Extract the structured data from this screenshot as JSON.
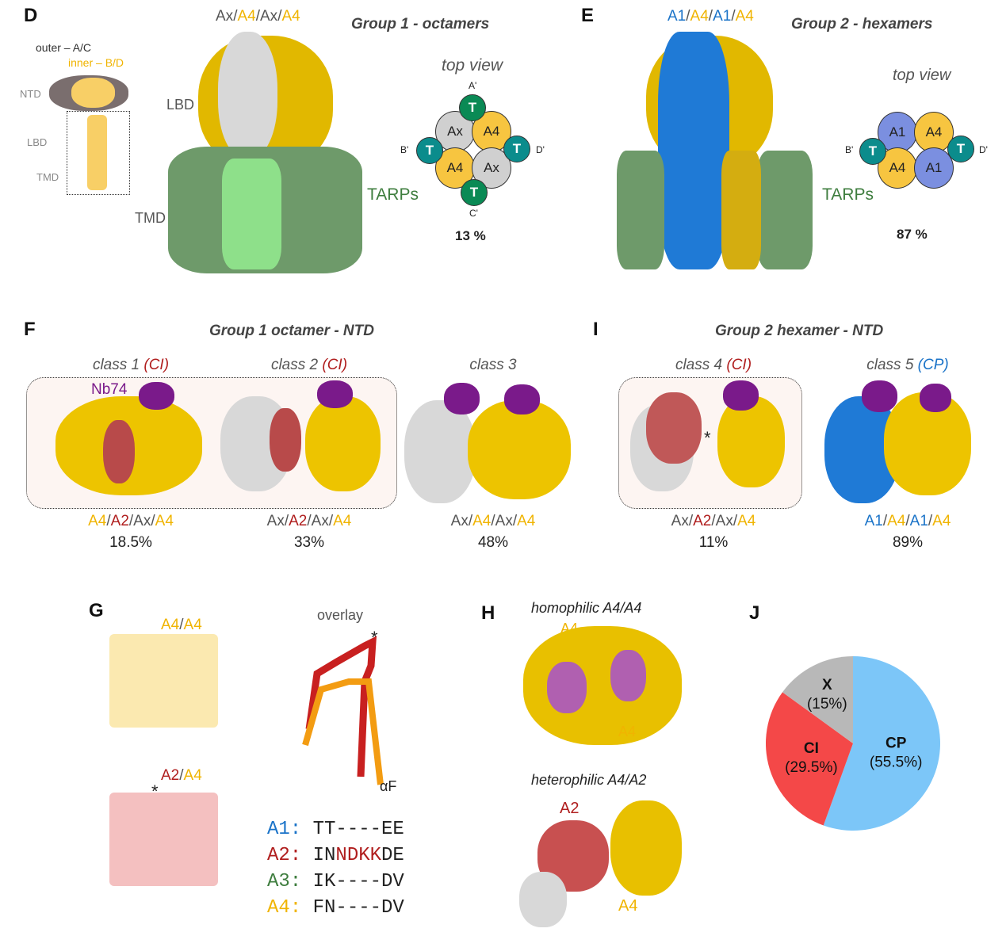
{
  "colors": {
    "A4": "#f0b400",
    "A2": "#b01e1e",
    "Ax": "#555555",
    "A1": "#1a73c8",
    "TARP": "#3e7d3e",
    "gray": "#c8c8c8",
    "teal": "#0b8c8c",
    "green": "#0a8a55",
    "purple": "#7a1a8a",
    "A1circle": "#7b8fe0"
  },
  "panelD": {
    "letter": "D",
    "title": "Group 1 - octamers",
    "composition": [
      {
        "t": "Ax",
        "c": "Ax"
      },
      {
        "t": "/",
        "c": "Ax"
      },
      {
        "t": "A4",
        "c": "A4"
      },
      {
        "t": "/",
        "c": "Ax"
      },
      {
        "t": "Ax",
        "c": "Ax"
      },
      {
        "t": "/",
        "c": "Ax"
      },
      {
        "t": "A4",
        "c": "A4"
      }
    ],
    "schematic": {
      "outer": "outer – A/C",
      "inner": "inner – B/D",
      "ntd": "NTD",
      "lbd": "LBD",
      "tmd": "TMD"
    },
    "lbd": "LBD",
    "tmd": "TMD",
    "tarps": "TARPs",
    "top_view": "top view",
    "top": {
      "a": "A'",
      "b": "B'",
      "c": "C'",
      "d": "D'",
      "t": "T",
      "s1": "Ax",
      "s2": "A4",
      "s3": "A4",
      "s4": "Ax"
    },
    "percent": "13 %"
  },
  "panelE": {
    "letter": "E",
    "title": "Group 2 - hexamers",
    "composition": [
      {
        "t": "A1",
        "c": "A1"
      },
      {
        "t": "/",
        "c": "Ax"
      },
      {
        "t": "A4",
        "c": "A4"
      },
      {
        "t": "/",
        "c": "Ax"
      },
      {
        "t": "A1",
        "c": "A1"
      },
      {
        "t": "/",
        "c": "Ax"
      },
      {
        "t": "A4",
        "c": "A4"
      }
    ],
    "tarps": "TARPs",
    "top_view": "top view",
    "top": {
      "b": "B'",
      "d": "D'",
      "t": "T",
      "s1": "A1",
      "s2": "A4",
      "s3": "A4",
      "s4": "A1"
    },
    "percent": "87 %"
  },
  "panelF": {
    "letter": "F",
    "title": "Group 1 octamer - NTD",
    "nb": "Nb74",
    "classes": [
      {
        "name": "class 1",
        "tag": "(CI)",
        "tagc": "A2",
        "comp": [
          {
            "t": "A4",
            "c": "A4"
          },
          {
            "t": "/",
            "c": "Ax"
          },
          {
            "t": "A2",
            "c": "A2"
          },
          {
            "t": "/",
            "c": "Ax"
          },
          {
            "t": "Ax",
            "c": "Ax"
          },
          {
            "t": "/",
            "c": "Ax"
          },
          {
            "t": "A4",
            "c": "A4"
          }
        ],
        "pct": "18.5%"
      },
      {
        "name": "class 2",
        "tag": "(CI)",
        "tagc": "A2",
        "comp": [
          {
            "t": "Ax",
            "c": "Ax"
          },
          {
            "t": "/",
            "c": "Ax"
          },
          {
            "t": "A2",
            "c": "A2"
          },
          {
            "t": "/",
            "c": "Ax"
          },
          {
            "t": "Ax",
            "c": "Ax"
          },
          {
            "t": "/",
            "c": "Ax"
          },
          {
            "t": "A4",
            "c": "A4"
          }
        ],
        "pct": "33%"
      },
      {
        "name": "class 3",
        "tag": "",
        "tagc": "Ax",
        "comp": [
          {
            "t": "Ax",
            "c": "Ax"
          },
          {
            "t": "/",
            "c": "Ax"
          },
          {
            "t": "A4",
            "c": "A4"
          },
          {
            "t": "/",
            "c": "Ax"
          },
          {
            "t": "Ax",
            "c": "Ax"
          },
          {
            "t": "/",
            "c": "Ax"
          },
          {
            "t": "A4",
            "c": "A4"
          }
        ],
        "pct": "48%"
      }
    ]
  },
  "panelI": {
    "letter": "I",
    "title": "Group 2 hexamer - NTD",
    "star": "*",
    "classes": [
      {
        "name": "class 4",
        "tag": "(CI)",
        "tagc": "A2",
        "comp": [
          {
            "t": "Ax",
            "c": "Ax"
          },
          {
            "t": "/",
            "c": "Ax"
          },
          {
            "t": "A2",
            "c": "A2"
          },
          {
            "t": "/",
            "c": "Ax"
          },
          {
            "t": "Ax",
            "c": "Ax"
          },
          {
            "t": "/",
            "c": "Ax"
          },
          {
            "t": "A4",
            "c": "A4"
          }
        ],
        "pct": "11%"
      },
      {
        "name": "class 5",
        "tag": "(CP)",
        "tagc": "A1",
        "comp": [
          {
            "t": "A1",
            "c": "A1"
          },
          {
            "t": "/",
            "c": "Ax"
          },
          {
            "t": "A4",
            "c": "A4"
          },
          {
            "t": "/",
            "c": "Ax"
          },
          {
            "t": "A1",
            "c": "A1"
          },
          {
            "t": "/",
            "c": "Ax"
          },
          {
            "t": "A4",
            "c": "A4"
          }
        ],
        "pct": "89%"
      }
    ]
  },
  "panelG": {
    "letter": "G",
    "top_label": [
      {
        "t": "A4",
        "c": "A4"
      },
      {
        "t": "/",
        "c": "Ax"
      },
      {
        "t": "A4",
        "c": "A4"
      }
    ],
    "bottom_label": [
      {
        "t": "A2",
        "c": "A2"
      },
      {
        "t": "/",
        "c": "Ax"
      },
      {
        "t": "A4",
        "c": "A4"
      }
    ],
    "overlay": "overlay",
    "star": "*",
    "helix": "αF",
    "alignment": [
      {
        "name": "A1:",
        "c": "A1",
        "seq": [
          {
            "t": "TT----EE",
            "c": "#222"
          }
        ]
      },
      {
        "name": "A2:",
        "c": "A2",
        "seq": [
          {
            "t": "IN",
            "c": "#222"
          },
          {
            "t": "NDKK",
            "c": "#b01e1e"
          },
          {
            "t": "DE",
            "c": "#222"
          }
        ]
      },
      {
        "name": "A3:",
        "c": "TARP",
        "seq": [
          {
            "t": "IK----DV",
            "c": "#222"
          }
        ]
      },
      {
        "name": "A4:",
        "c": "A4",
        "seq": [
          {
            "t": "FN----DV",
            "c": "#222"
          }
        ]
      }
    ]
  },
  "panelH": {
    "letter": "H",
    "homo": "homophilic A4/A4",
    "hetero": "heterophilic A4/A2",
    "a4": "A4",
    "a2": "A2"
  },
  "chart_data": {
    "type": "pie",
    "slices": [
      {
        "label": "CP",
        "value": 55.5,
        "text": "(55.5%)",
        "color": "#7cc6f8"
      },
      {
        "label": "CI",
        "value": 29.5,
        "text": "(29.5%)",
        "color": "#f44848"
      },
      {
        "label": "X",
        "value": 15,
        "text": "(15%)",
        "color": "#b8b8b8"
      }
    ],
    "start": "12 o'clock",
    "direction": "clockwise"
  },
  "panelJ": {
    "letter": "J"
  }
}
